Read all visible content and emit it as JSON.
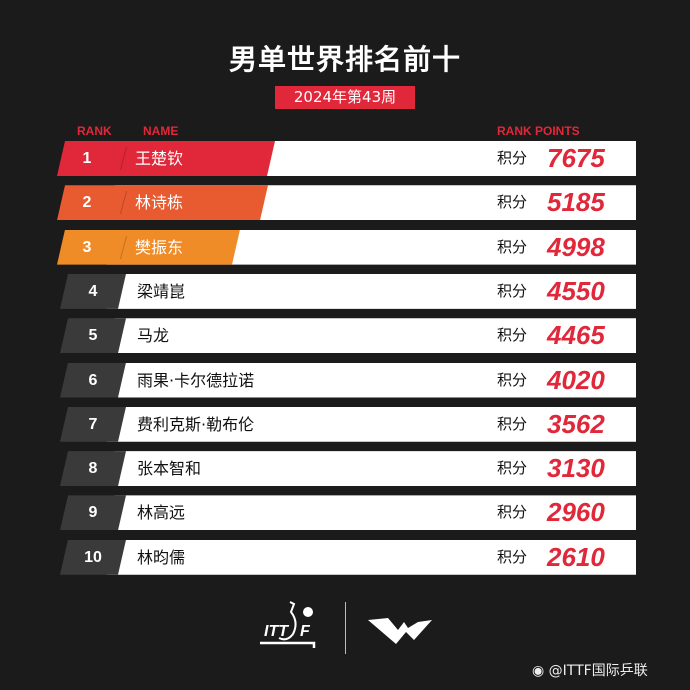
{
  "title": "男单世界排名前十",
  "subtitle": "2024年第43周",
  "headers": {
    "rank": "RANK",
    "name": "NAME",
    "points": "RANK POINTS"
  },
  "colors": {
    "rank1": "#e0283a",
    "rank2": "#e85a30",
    "rank3": "#f08c28",
    "other": "#3a3a3a",
    "accent": "#e0283a"
  },
  "rows": [
    {
      "rank": "1",
      "name": "王楚钦",
      "label": "积分",
      "points": "7675"
    },
    {
      "rank": "2",
      "name": "林诗栋",
      "label": "积分",
      "points": "5185"
    },
    {
      "rank": "3",
      "name": "樊振东",
      "label": "积分",
      "points": "4998"
    },
    {
      "rank": "4",
      "name": "梁靖崑",
      "label": "积分",
      "points": "4550"
    },
    {
      "rank": "5",
      "name": "马龙",
      "label": "积分",
      "points": "4465"
    },
    {
      "rank": "6",
      "name": "雨果·卡尔德拉诺",
      "label": "积分",
      "points": "4020"
    },
    {
      "rank": "7",
      "name": "费利克斯·勒布伦",
      "label": "积分",
      "points": "3562"
    },
    {
      "rank": "8",
      "name": "张本智和",
      "label": "积分",
      "points": "3130"
    },
    {
      "rank": "9",
      "name": "林高远",
      "label": "积分",
      "points": "2960"
    },
    {
      "rank": "10",
      "name": "林昀儒",
      "label": "积分",
      "points": "2610"
    }
  ],
  "logos": {
    "itff": "ITTF",
    "wtt": "WTT"
  },
  "watermark": "@ITTF国际乒联"
}
